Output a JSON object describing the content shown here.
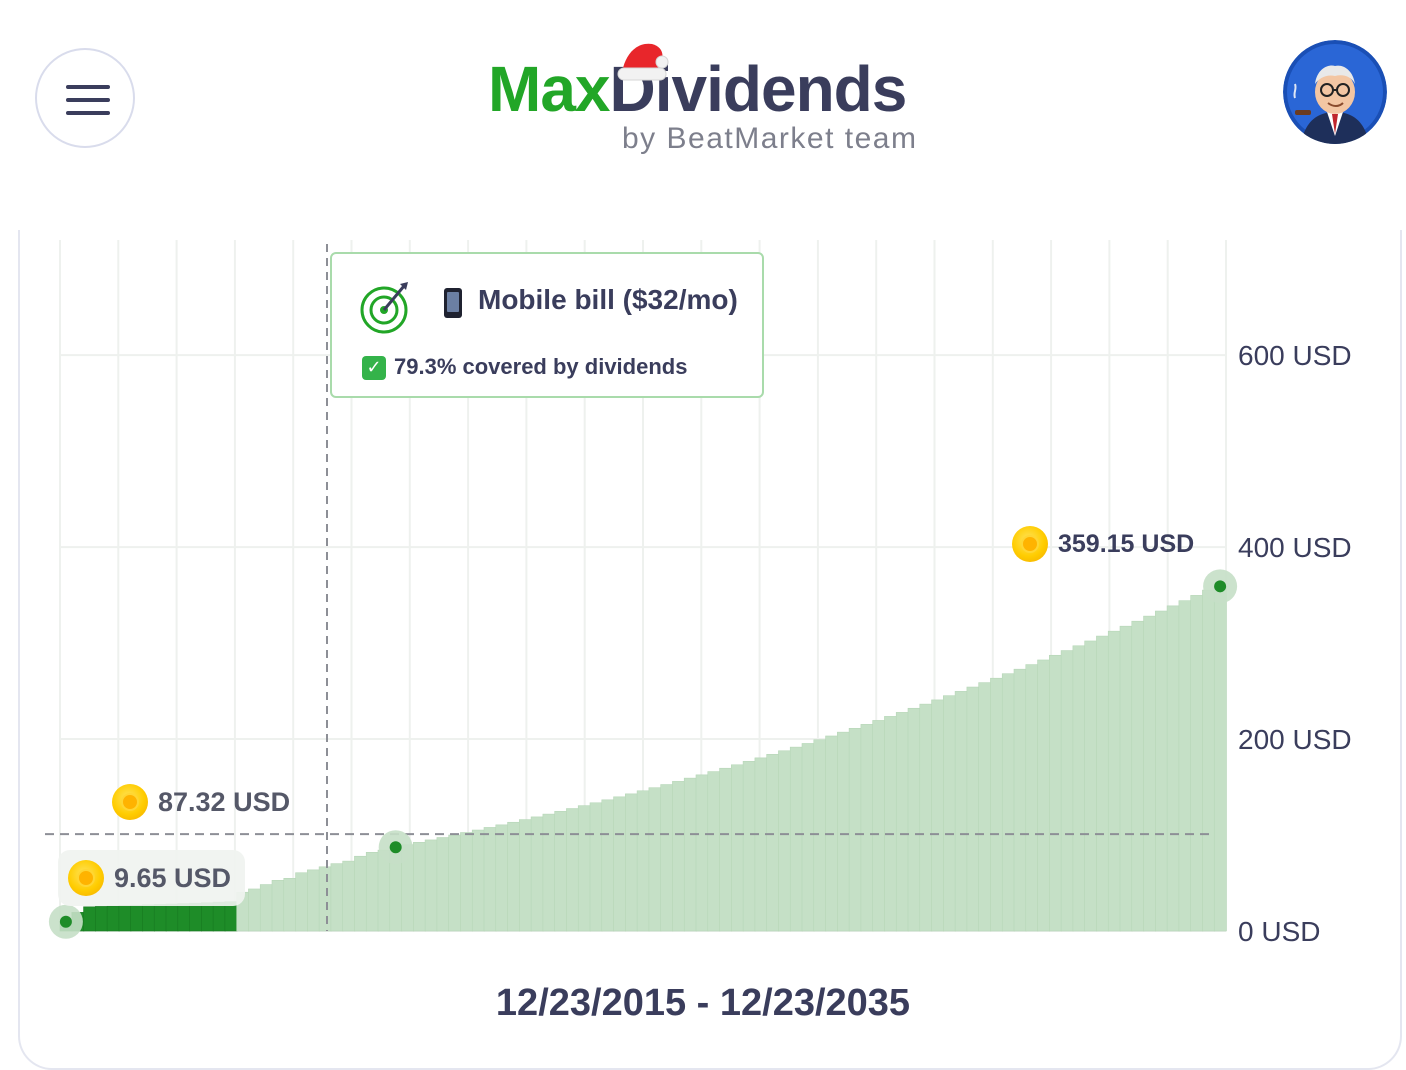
{
  "header": {
    "logo_part1": "Max",
    "logo_part2": "Dividends",
    "logo_sub": "by BeatMarket team",
    "menu_icon": "hamburger-icon",
    "avatar_icon": "user-avatar-icon",
    "colors": {
      "brand_green": "#22a627",
      "text_dark": "#3a3d5c",
      "hat_red": "#e8262b"
    }
  },
  "chart_data": {
    "type": "bar",
    "x_start": "12/23/2015",
    "x_end": "12/23/2035",
    "y_unit": "USD",
    "ylim": [
      0,
      720
    ],
    "y_ticks": [
      {
        "value": 0,
        "label": "0 USD"
      },
      {
        "value": 200,
        "label": "200 USD"
      },
      {
        "value": 400,
        "label": "400 USD"
      },
      {
        "value": 600,
        "label": "600 USD"
      }
    ],
    "series": [
      {
        "values": [
          9.65,
          19.4,
          25.2,
          25.6,
          26.0,
          26.5,
          26.9,
          27.3,
          27.7,
          28.1,
          28.6,
          29.0,
          29.5,
          30.1,
          30.6
        ]
      },
      {
        "values": [
          40.4,
          43.8,
          48.4,
          52.8,
          54.9,
          60.7,
          63.7,
          66.9,
          70.2,
          72.8,
          77.9,
          82.0,
          84.3,
          87.32,
          89.9,
          92.4,
          94.9,
          97.4,
          100.0,
          102.6,
          105.2,
          107.9,
          110.6,
          113.3,
          116.1,
          118.9,
          121.8,
          124.7,
          127.6,
          130.6,
          133.6,
          136.7,
          139.8,
          142.9,
          146.1,
          149.3,
          152.6,
          155.9,
          159.3,
          162.7,
          166.1,
          169.6,
          173.2,
          176.8,
          180.4,
          184.1,
          187.8,
          191.6,
          195.4,
          199.3,
          203.2,
          207.2,
          211.2,
          215.3,
          219.4,
          223.6,
          227.8,
          232.1,
          236.4,
          240.8,
          245.2,
          249.7,
          254.2,
          258.8,
          263.4,
          268.1,
          272.8,
          277.6,
          282.4,
          287.3,
          292.2,
          297.2,
          302.2,
          307.3,
          312.4,
          317.6,
          322.8,
          328.1,
          333.4,
          338.8,
          344.2,
          349.7,
          355.2,
          359.15
        ]
      }
    ],
    "annotations": [
      {
        "label": "9.65 USD",
        "value": 9.65
      },
      {
        "label": "87.32 USD",
        "value": 87.32
      },
      {
        "label": "359.15 USD",
        "value": 359.15
      }
    ],
    "target_line": 100.9,
    "goal": {
      "title": "Mobile bill ($32/mo)",
      "subtitle": "79.3% covered by dividends"
    },
    "colors": {
      "dark_bar": "#1e8c28",
      "light_bar": "#c5e0c6",
      "grid": "#eef1ee"
    }
  },
  "footer": {
    "date_range": "12/23/2015 - 12/23/2035"
  }
}
